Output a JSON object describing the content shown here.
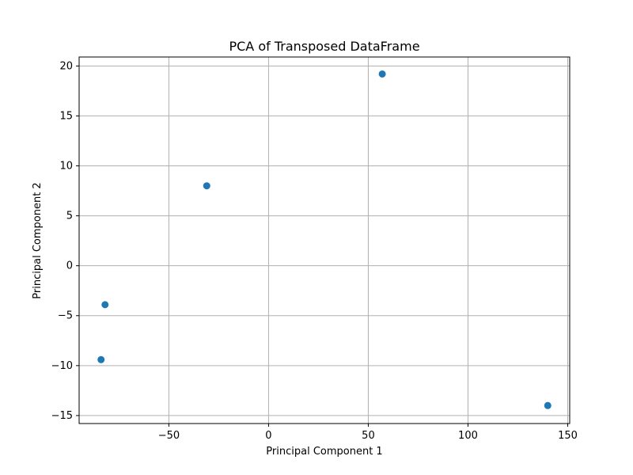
{
  "chart_data": {
    "type": "scatter",
    "title": "PCA of Transposed DataFrame",
    "xlabel": "Principal Component 1",
    "ylabel": "Principal Component 2",
    "xlim": [
      -95,
      151
    ],
    "ylim": [
      -15.8,
      20.9
    ],
    "x_ticks": [
      -50,
      0,
      50,
      100,
      150
    ],
    "x_tick_labels": [
      "−50",
      "0",
      "50",
      "100",
      "150"
    ],
    "y_ticks": [
      -15,
      -10,
      -5,
      0,
      5,
      10,
      15,
      20
    ],
    "y_tick_labels": [
      "−15",
      "−10",
      "−5",
      "0",
      "5",
      "10",
      "15",
      "20"
    ],
    "grid": true,
    "point_color": "#1f77b4",
    "points": [
      {
        "x": 57,
        "y": 19.2
      },
      {
        "x": -31,
        "y": 8.0
      },
      {
        "x": -82,
        "y": -3.9
      },
      {
        "x": -84,
        "y": -9.4
      },
      {
        "x": 140,
        "y": -14.0
      }
    ]
  }
}
